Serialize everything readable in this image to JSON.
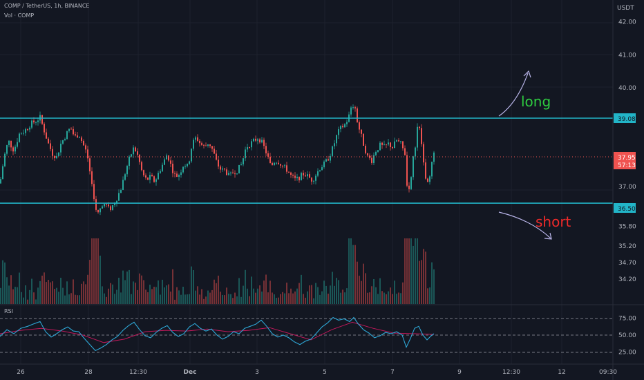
{
  "legend": {
    "symbol": "COMP / TetherUS, 1h, BINANCE",
    "volume": "Vol · COMP",
    "rsi": "RSI"
  },
  "currency": "USDT",
  "annotations": {
    "long": "long",
    "short": "short"
  },
  "colors": {
    "background": "#131722",
    "grid": "#1e222d",
    "up": "#26a69a",
    "down": "#ef5350",
    "level_line": "#22b5c8",
    "long_text": "#2ecc40",
    "short_text": "#ef2a2a",
    "rsi": "#2ea7d6",
    "rsi_ma": "#c2185b",
    "arrow": "#b8b4e8"
  },
  "chart_data": {
    "type": "candlestick",
    "price_axis": {
      "ticks": [
        "42.00",
        "41.00",
        "40.00",
        "39.08",
        "37.95",
        "37.00",
        "36.50",
        "35.80",
        "35.20",
        "34.70",
        "34.20"
      ],
      "ylim": [
        33.9,
        42.5
      ]
    },
    "time_axis": {
      "ticks": [
        "26",
        "28",
        "12:30",
        "Dec",
        "3",
        "5",
        "7",
        "9",
        "12:30",
        "12",
        "09:30"
      ]
    },
    "levels": [
      {
        "price": 39.08,
        "label": "39.08"
      },
      {
        "price": 36.5,
        "label": "36.50"
      }
    ],
    "current_price": {
      "price": 37.95,
      "label": "37.95",
      "countdown": "57:13"
    },
    "rsi_axis": {
      "ticks": [
        "75.00",
        "50.00",
        "25.00"
      ],
      "ylim": [
        15,
        85
      ]
    },
    "price_path": [
      [
        0,
        37.1
      ],
      [
        6,
        37.9
      ],
      [
        12,
        38.4
      ],
      [
        20,
        38.1
      ],
      [
        28,
        38.6
      ],
      [
        36,
        38.7
      ],
      [
        44,
        38.9
      ],
      [
        52,
        39.0
      ],
      [
        58,
        39.1
      ],
      [
        64,
        38.7
      ],
      [
        70,
        38.3
      ],
      [
        76,
        38.0
      ],
      [
        82,
        37.9
      ],
      [
        88,
        38.3
      ],
      [
        96,
        38.6
      ],
      [
        102,
        38.8
      ],
      [
        108,
        38.5
      ],
      [
        114,
        38.6
      ],
      [
        120,
        38.3
      ],
      [
        126,
        38.0
      ],
      [
        132,
        37.2
      ],
      [
        136,
        36.7
      ],
      [
        140,
        36.1
      ],
      [
        146,
        36.35
      ],
      [
        152,
        36.5
      ],
      [
        158,
        36.3
      ],
      [
        164,
        36.45
      ],
      [
        170,
        36.7
      ],
      [
        176,
        37.0
      ],
      [
        182,
        37.5
      ],
      [
        188,
        37.9
      ],
      [
        194,
        38.2
      ],
      [
        200,
        37.9
      ],
      [
        206,
        37.4
      ],
      [
        212,
        37.2
      ],
      [
        218,
        37.3
      ],
      [
        224,
        37.15
      ],
      [
        230,
        37.45
      ],
      [
        236,
        37.7
      ],
      [
        242,
        38.0
      ],
      [
        248,
        37.6
      ],
      [
        254,
        37.3
      ],
      [
        260,
        37.4
      ],
      [
        266,
        37.7
      ],
      [
        272,
        37.6
      ],
      [
        278,
        38.3
      ],
      [
        284,
        38.5
      ],
      [
        290,
        38.3
      ],
      [
        296,
        38.2
      ],
      [
        302,
        38.35
      ],
      [
        308,
        38.1
      ],
      [
        314,
        37.7
      ],
      [
        320,
        37.5
      ],
      [
        326,
        37.5
      ],
      [
        332,
        37.3
      ],
      [
        338,
        37.45
      ],
      [
        344,
        37.5
      ],
      [
        350,
        37.7
      ],
      [
        356,
        38.2
      ],
      [
        362,
        38.3
      ],
      [
        368,
        38.4
      ],
      [
        374,
        38.5
      ],
      [
        380,
        38.3
      ],
      [
        386,
        38.0
      ],
      [
        392,
        37.6
      ],
      [
        398,
        37.8
      ],
      [
        404,
        37.75
      ],
      [
        410,
        37.6
      ],
      [
        416,
        37.5
      ],
      [
        422,
        37.3
      ],
      [
        428,
        37.2
      ],
      [
        434,
        37.3
      ],
      [
        440,
        37.4
      ],
      [
        446,
        37.3
      ],
      [
        452,
        37.2
      ],
      [
        458,
        37.4
      ],
      [
        464,
        37.6
      ],
      [
        470,
        37.7
      ],
      [
        476,
        37.9
      ],
      [
        482,
        38.2
      ],
      [
        488,
        38.6
      ],
      [
        494,
        38.8
      ],
      [
        500,
        38.9
      ],
      [
        506,
        39.2
      ],
      [
        510,
        39.5
      ],
      [
        514,
        39.3
      ],
      [
        518,
        38.9
      ],
      [
        522,
        38.6
      ],
      [
        526,
        38.3
      ],
      [
        532,
        37.9
      ],
      [
        538,
        37.8
      ],
      [
        544,
        38.1
      ],
      [
        550,
        38.25
      ],
      [
        556,
        38.2
      ],
      [
        562,
        38.3
      ],
      [
        568,
        38.2
      ],
      [
        574,
        38.4
      ],
      [
        580,
        38.3
      ],
      [
        586,
        38.0
      ],
      [
        590,
        36.6
      ],
      [
        594,
        37.1
      ],
      [
        598,
        37.9
      ],
      [
        602,
        38.4
      ],
      [
        605,
        39.0
      ],
      [
        608,
        38.6
      ],
      [
        612,
        38.0
      ],
      [
        616,
        37.3
      ],
      [
        620,
        37.2
      ],
      [
        624,
        37.6
      ],
      [
        628,
        37.95
      ]
    ],
    "rsi_path": [
      [
        0,
        48
      ],
      [
        10,
        58
      ],
      [
        20,
        52
      ],
      [
        30,
        60
      ],
      [
        40,
        63
      ],
      [
        50,
        67
      ],
      [
        58,
        70
      ],
      [
        66,
        55
      ],
      [
        74,
        47
      ],
      [
        82,
        52
      ],
      [
        90,
        58
      ],
      [
        98,
        62
      ],
      [
        106,
        56
      ],
      [
        114,
        55
      ],
      [
        122,
        45
      ],
      [
        130,
        36
      ],
      [
        138,
        27
      ],
      [
        146,
        31
      ],
      [
        154,
        36
      ],
      [
        162,
        43
      ],
      [
        170,
        48
      ],
      [
        178,
        57
      ],
      [
        186,
        64
      ],
      [
        194,
        69
      ],
      [
        202,
        58
      ],
      [
        210,
        49
      ],
      [
        218,
        46
      ],
      [
        226,
        54
      ],
      [
        234,
        60
      ],
      [
        242,
        64
      ],
      [
        250,
        54
      ],
      [
        258,
        48
      ],
      [
        266,
        52
      ],
      [
        274,
        62
      ],
      [
        282,
        67
      ],
      [
        290,
        60
      ],
      [
        298,
        56
      ],
      [
        306,
        59
      ],
      [
        314,
        50
      ],
      [
        322,
        44
      ],
      [
        330,
        48
      ],
      [
        338,
        55
      ],
      [
        346,
        52
      ],
      [
        354,
        60
      ],
      [
        362,
        63
      ],
      [
        370,
        66
      ],
      [
        378,
        72
      ],
      [
        386,
        63
      ],
      [
        394,
        52
      ],
      [
        402,
        47
      ],
      [
        410,
        50
      ],
      [
        418,
        46
      ],
      [
        426,
        40
      ],
      [
        434,
        36
      ],
      [
        442,
        41
      ],
      [
        450,
        44
      ],
      [
        458,
        53
      ],
      [
        466,
        62
      ],
      [
        474,
        68
      ],
      [
        482,
        76
      ],
      [
        490,
        72
      ],
      [
        498,
        74
      ],
      [
        506,
        70
      ],
      [
        512,
        76
      ],
      [
        518,
        67
      ],
      [
        526,
        58
      ],
      [
        534,
        53
      ],
      [
        542,
        46
      ],
      [
        550,
        49
      ],
      [
        558,
        54
      ],
      [
        566,
        52
      ],
      [
        574,
        55
      ],
      [
        582,
        50
      ],
      [
        588,
        32
      ],
      [
        594,
        45
      ],
      [
        600,
        60
      ],
      [
        606,
        63
      ],
      [
        612,
        50
      ],
      [
        618,
        43
      ],
      [
        624,
        49
      ],
      [
        628,
        52
      ]
    ],
    "rsi_ma_path": [
      [
        0,
        52
      ],
      [
        30,
        57
      ],
      [
        60,
        60
      ],
      [
        90,
        56
      ],
      [
        120,
        50
      ],
      [
        150,
        39
      ],
      [
        180,
        44
      ],
      [
        210,
        55
      ],
      [
        240,
        57
      ],
      [
        270,
        56
      ],
      [
        300,
        59
      ],
      [
        330,
        55
      ],
      [
        360,
        57
      ],
      [
        390,
        61
      ],
      [
        420,
        52
      ],
      [
        450,
        43
      ],
      [
        480,
        58
      ],
      [
        510,
        69
      ],
      [
        540,
        60
      ],
      [
        570,
        53
      ],
      [
        600,
        52
      ],
      [
        628,
        51
      ]
    ]
  }
}
